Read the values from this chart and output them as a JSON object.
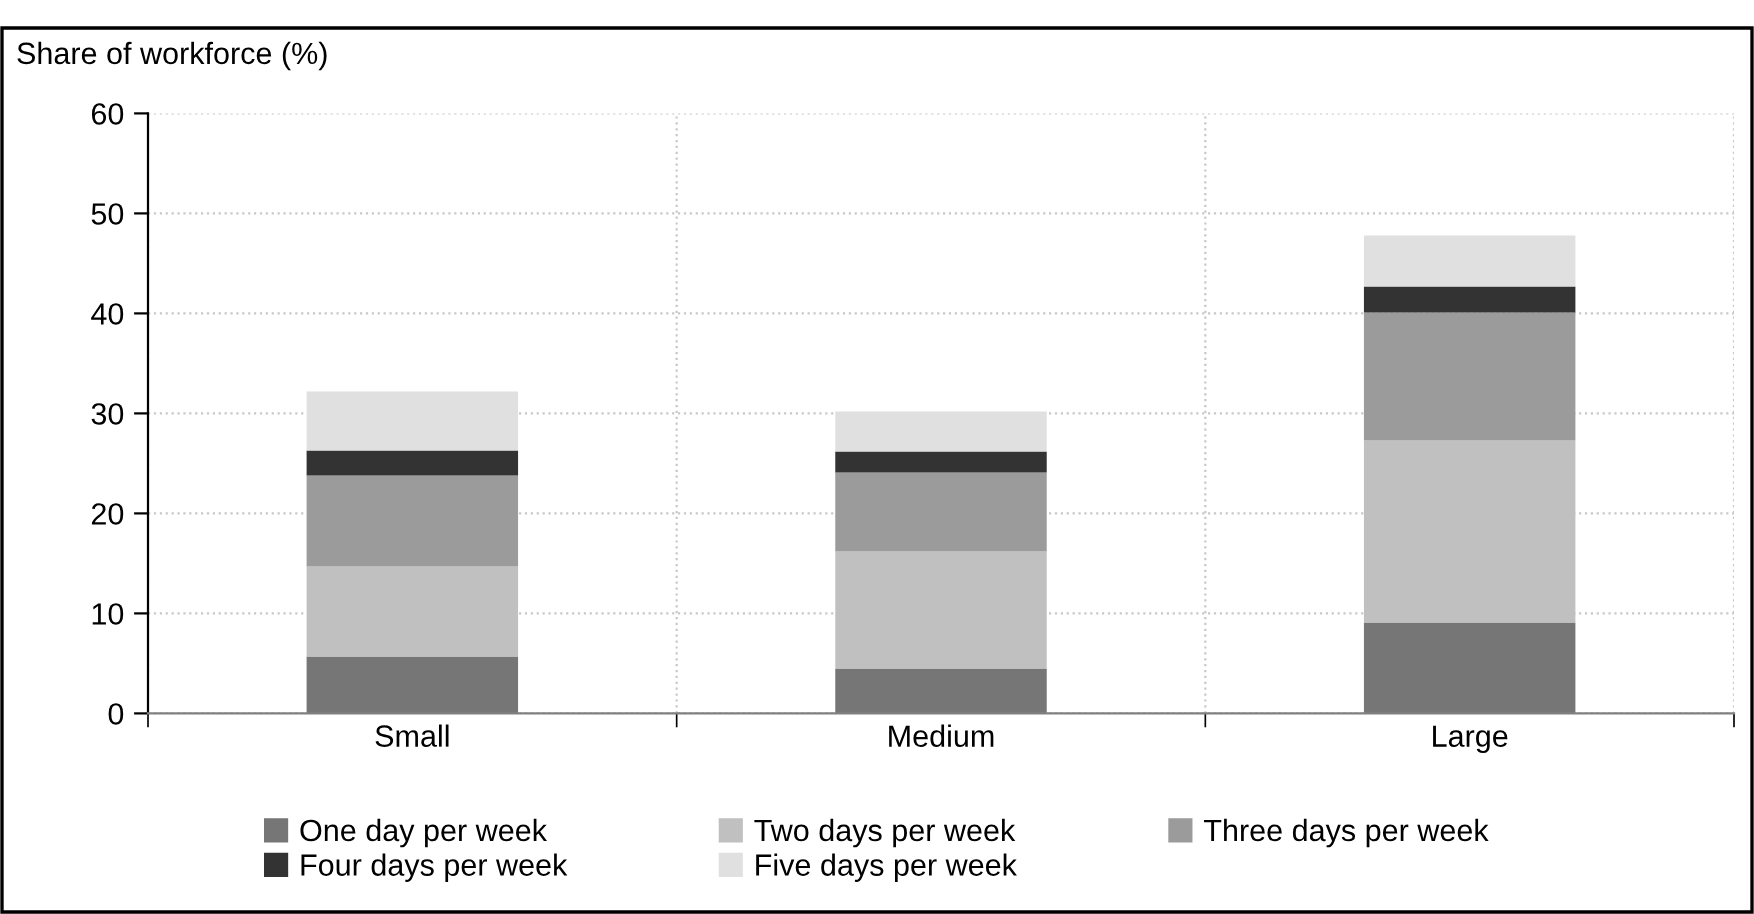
{
  "chart_data": {
    "type": "bar",
    "stacked": true,
    "ylabel": "Share of workforce (%)",
    "categories": [
      "Small",
      "Medium",
      "Large"
    ],
    "series": [
      {
        "name": "One day per week",
        "color": "#767676",
        "values": [
          5.7,
          4.5,
          9.1
        ]
      },
      {
        "name": "Two days per week",
        "color": "#c0c0c0",
        "values": [
          9.0,
          11.7,
          18.2
        ]
      },
      {
        "name": "Three days per week",
        "color": "#9b9b9b",
        "values": [
          9.1,
          7.9,
          12.8
        ]
      },
      {
        "name": "Four days per week",
        "color": "#333333",
        "values": [
          2.5,
          2.1,
          2.6
        ]
      },
      {
        "name": "Five days per week",
        "color": "#e0e0e0",
        "values": [
          5.9,
          4.0,
          5.1
        ]
      }
    ],
    "ylim": [
      0,
      60
    ],
    "yticks": [
      0,
      10,
      20,
      30,
      40,
      50,
      60
    ],
    "grid": true,
    "legend": "bottom"
  }
}
